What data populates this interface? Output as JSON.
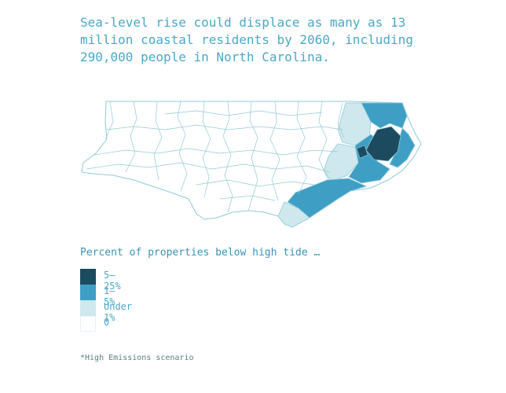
{
  "headline": "Sea-level rise could displace as many as 13 million coastal residents by 2060, including 290,000 people in North Carolina.",
  "legend": {
    "title": "Percent of properties below high tide …",
    "items": [
      {
        "label": "5–25%",
        "color": "#1c4a5e"
      },
      {
        "label": "1–5%",
        "color": "#3f9ec4"
      },
      {
        "label": "Under 1%",
        "color": "#cfe8ee"
      },
      {
        "label": "0",
        "color": "#ffffff"
      }
    ]
  },
  "footnote": "*High Emissions scenario",
  "colors": {
    "border": "#8fcad7",
    "headline": "#4aa8c8"
  }
}
